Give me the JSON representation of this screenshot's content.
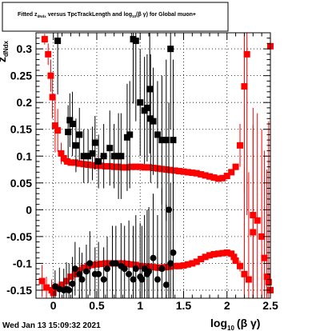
{
  "header": {
    "title_pre": "Fitted  z",
    "title_sub1": "dNdx",
    "title_mid": "  versus TpcTrackLength and log",
    "title_sub2": "10",
    "title_post": "(β γ) for Global muon+"
  },
  "y_axis_title": {
    "main": "z",
    "sub": "dNdx"
  },
  "x_axis_title": {
    "pre": "log",
    "sub": "10",
    "post": "(β γ)"
  },
  "timestamp": "Wed Jan 13 15:09:32 2021",
  "colors": {
    "red_series": "#ff0000",
    "black_series": "#000000"
  },
  "chart_data": {
    "type": "scatter",
    "xlim": [
      -0.2,
      2.5
    ],
    "ylim": [
      -0.165,
      0.33
    ],
    "grid": true,
    "x_tick_labels": [
      "0",
      "0.5",
      "1",
      "1.5",
      "2",
      "2.5"
    ],
    "x_ticks": [
      0,
      0.5,
      1,
      1.5,
      2,
      2.5
    ],
    "y_tick_labels": [
      "-0.15",
      "-0.1",
      "-0.05",
      "0",
      "0.05",
      "0.1",
      "0.15",
      "0.2",
      "0.25",
      "0.3"
    ],
    "y_ticks": [
      -0.15,
      -0.1,
      -0.05,
      0,
      0.05,
      0.1,
      0.15,
      0.2,
      0.25,
      0.3
    ],
    "series": [
      {
        "marker": "square",
        "color": "#ff0000",
        "points": [
          [
            -0.1,
            0.318,
            0.01
          ],
          [
            -0.06,
            0.29,
            0.02
          ],
          [
            -0.03,
            0.25,
            0.03
          ],
          [
            -0.01,
            0.21,
            0.04
          ],
          [
            0.02,
            0.157,
            0.05
          ],
          [
            0.05,
            0.148,
            0.04
          ],
          [
            0.09,
            0.105,
            0.02
          ],
          [
            0.12,
            0.096,
            0.008
          ],
          [
            0.16,
            0.09,
            0.005
          ],
          [
            0.2,
            0.088,
            0.004
          ],
          [
            0.25,
            0.088,
            0.003
          ],
          [
            0.3,
            0.086,
            0.003
          ],
          [
            0.35,
            0.085,
            0.003
          ],
          [
            0.4,
            0.084,
            0.003
          ],
          [
            0.45,
            0.083,
            0.003
          ],
          [
            0.5,
            0.082,
            0.002
          ],
          [
            0.55,
            0.082,
            0.002
          ],
          [
            0.6,
            0.081,
            0.002
          ],
          [
            0.65,
            0.081,
            0.002
          ],
          [
            0.7,
            0.08,
            0.002
          ],
          [
            0.75,
            0.08,
            0.002
          ],
          [
            0.8,
            0.079,
            0.002
          ],
          [
            0.85,
            0.079,
            0.002
          ],
          [
            0.9,
            0.08,
            0.002
          ],
          [
            0.95,
            0.08,
            0.002
          ],
          [
            1.0,
            0.08,
            0.002
          ],
          [
            1.05,
            0.079,
            0.002
          ],
          [
            1.1,
            0.079,
            0.002
          ],
          [
            1.15,
            0.078,
            0.002
          ],
          [
            1.2,
            0.077,
            0.002
          ],
          [
            1.25,
            0.076,
            0.002
          ],
          [
            1.3,
            0.075,
            0.002
          ],
          [
            1.35,
            0.074,
            0.002
          ],
          [
            1.4,
            0.073,
            0.002
          ],
          [
            1.45,
            0.072,
            0.002
          ],
          [
            1.5,
            0.071,
            0.002
          ],
          [
            1.55,
            0.07,
            0.002
          ],
          [
            1.6,
            0.069,
            0.002
          ],
          [
            1.65,
            0.068,
            0.002
          ],
          [
            1.7,
            0.066,
            0.002
          ],
          [
            1.75,
            0.064,
            0.002
          ],
          [
            1.8,
            0.062,
            0.002
          ],
          [
            1.85,
            0.06,
            0.002
          ],
          [
            1.9,
            0.058,
            0.002
          ],
          [
            1.95,
            0.059,
            0.002
          ],
          [
            2.0,
            0.063,
            0.003
          ],
          [
            2.05,
            0.07,
            0.004
          ],
          [
            2.1,
            0.08,
            0.006
          ],
          [
            2.15,
            0.12,
            0.04
          ],
          [
            2.2,
            0.23,
            0.2
          ],
          [
            2.23,
            0.29,
            0.3
          ],
          [
            2.5,
            0.305,
            0.3
          ],
          [
            -0.13,
            -0.133,
            0.03
          ],
          [
            -0.08,
            -0.145,
            0.02
          ],
          [
            -0.02,
            -0.15,
            0.02
          ],
          [
            0.0,
            -0.155,
            0.01
          ],
          [
            0.05,
            -0.145,
            0.008
          ],
          [
            0.1,
            -0.14,
            0.006
          ],
          [
            0.15,
            -0.133,
            0.005
          ],
          [
            0.2,
            -0.125,
            0.004
          ],
          [
            0.25,
            -0.12,
            0.004
          ],
          [
            0.3,
            -0.113,
            0.003
          ],
          [
            0.35,
            -0.108,
            0.003
          ],
          [
            0.4,
            -0.105,
            0.003
          ],
          [
            0.45,
            -0.103,
            0.003
          ],
          [
            0.5,
            -0.102,
            0.003
          ],
          [
            0.55,
            -0.101,
            0.002
          ],
          [
            0.6,
            -0.1,
            0.002
          ],
          [
            0.65,
            -0.1,
            0.002
          ],
          [
            0.7,
            -0.1,
            0.002
          ],
          [
            0.75,
            -0.1,
            0.002
          ],
          [
            0.8,
            -0.1,
            0.002
          ],
          [
            0.85,
            -0.101,
            0.002
          ],
          [
            0.9,
            -0.102,
            0.002
          ],
          [
            0.95,
            -0.103,
            0.002
          ],
          [
            1.0,
            -0.105,
            0.002
          ],
          [
            1.05,
            -0.106,
            0.002
          ],
          [
            1.1,
            -0.106,
            0.002
          ],
          [
            1.15,
            -0.107,
            0.002
          ],
          [
            1.2,
            -0.108,
            0.002
          ],
          [
            1.25,
            -0.108,
            0.002
          ],
          [
            1.3,
            -0.107,
            0.002
          ],
          [
            1.35,
            -0.106,
            0.002
          ],
          [
            1.4,
            -0.105,
            0.002
          ],
          [
            1.45,
            -0.105,
            0.002
          ],
          [
            1.5,
            -0.104,
            0.002
          ],
          [
            1.55,
            -0.102,
            0.002
          ],
          [
            1.6,
            -0.1,
            0.002
          ],
          [
            1.65,
            -0.097,
            0.002
          ],
          [
            1.7,
            -0.092,
            0.002
          ],
          [
            1.75,
            -0.088,
            0.002
          ],
          [
            1.8,
            -0.085,
            0.002
          ],
          [
            1.85,
            -0.083,
            0.002
          ],
          [
            1.9,
            -0.082,
            0.002
          ],
          [
            1.95,
            -0.081,
            0.002
          ],
          [
            2.0,
            -0.08,
            0.003
          ],
          [
            2.05,
            -0.082,
            0.004
          ],
          [
            2.08,
            -0.088,
            0.005
          ],
          [
            2.1,
            -0.095,
            0.006
          ],
          [
            2.15,
            -0.105,
            0.01
          ],
          [
            2.2,
            -0.12,
            0.2
          ],
          [
            2.25,
            -0.13,
            0.2
          ],
          [
            2.3,
            -0.042,
            0.2
          ],
          [
            2.35,
            -0.02,
            0.2
          ],
          [
            2.4,
            -0.05,
            0.2
          ],
          [
            2.43,
            -0.09,
            0.2
          ],
          [
            2.46,
            -0.125,
            0.2
          ],
          [
            2.48,
            -0.135,
            0.3
          ],
          [
            2.5,
            -0.15,
            0.3
          ],
          [
            2.3,
            -0.01,
            0.2
          ]
        ]
      },
      {
        "marker": "square",
        "color": "#000000",
        "points": [
          [
            0.05,
            0.315,
            0.1
          ],
          [
            0.17,
            0.145,
            0.05
          ],
          [
            0.19,
            0.167,
            0.05
          ],
          [
            0.22,
            0.16,
            0.06
          ],
          [
            0.26,
            0.12,
            0.05
          ],
          [
            0.3,
            0.14,
            0.05
          ],
          [
            0.35,
            0.1,
            0.05
          ],
          [
            0.4,
            0.1,
            0.05
          ],
          [
            0.45,
            0.105,
            0.05
          ],
          [
            0.48,
            0.125,
            0.05
          ],
          [
            0.52,
            0.09,
            0.05
          ],
          [
            0.58,
            0.1,
            0.06
          ],
          [
            0.65,
            0.115,
            0.07
          ],
          [
            0.7,
            0.1,
            0.06
          ],
          [
            0.75,
            0.1,
            0.08
          ],
          [
            0.78,
            0.1,
            0.08
          ],
          [
            0.85,
            0.135,
            0.1
          ],
          [
            0.88,
            0.14,
            0.1
          ],
          [
            0.92,
            0.318,
            0.12
          ],
          [
            0.95,
            0.315,
            0.15
          ],
          [
            1.0,
            0.2,
            0.1
          ],
          [
            1.05,
            0.185,
            0.1
          ],
          [
            1.08,
            0.19,
            0.1
          ],
          [
            1.11,
            0.225,
            0.12
          ],
          [
            1.12,
            0.17,
            0.12
          ],
          [
            1.15,
            0.165,
            0.1
          ],
          [
            1.2,
            0.14,
            0.1
          ],
          [
            1.25,
            0.13,
            0.12
          ],
          [
            1.3,
            0.13,
            0.15
          ],
          [
            1.35,
            0.3,
            0.15
          ],
          [
            1.38,
            0.13,
            0.15
          ]
        ]
      },
      {
        "marker": "circle",
        "color": "#000000",
        "points": [
          [
            0.02,
            -0.143,
            0.03
          ],
          [
            0.07,
            -0.148,
            0.04
          ],
          [
            0.12,
            -0.15,
            0.04
          ],
          [
            0.15,
            -0.148,
            0.05
          ],
          [
            0.18,
            -0.15,
            0.05
          ],
          [
            0.22,
            -0.138,
            0.05
          ],
          [
            0.25,
            -0.11,
            0.05
          ],
          [
            0.3,
            -0.12,
            0.05
          ],
          [
            0.33,
            -0.13,
            0.05
          ],
          [
            0.38,
            -0.115,
            0.05
          ],
          [
            0.42,
            -0.1,
            0.06
          ],
          [
            0.48,
            -0.12,
            0.05
          ],
          [
            0.52,
            -0.12,
            0.06
          ],
          [
            0.58,
            -0.13,
            0.06
          ],
          [
            0.62,
            -0.11,
            0.06
          ],
          [
            0.68,
            -0.1,
            0.07
          ],
          [
            0.72,
            -0.1,
            0.07
          ],
          [
            0.78,
            -0.105,
            0.08
          ],
          [
            0.82,
            -0.11,
            0.08
          ],
          [
            0.87,
            -0.12,
            0.1
          ],
          [
            0.92,
            -0.13,
            0.1
          ],
          [
            0.95,
            -0.11,
            0.1
          ],
          [
            1.0,
            -0.125,
            0.1
          ],
          [
            1.02,
            -0.13,
            0.1
          ],
          [
            1.05,
            -0.11,
            0.1
          ],
          [
            1.08,
            -0.12,
            0.12
          ],
          [
            1.1,
            -0.115,
            0.12
          ],
          [
            1.15,
            -0.09,
            0.12
          ],
          [
            1.2,
            -0.13,
            0.12
          ],
          [
            1.25,
            -0.11,
            0.15
          ],
          [
            1.3,
            -0.14,
            0.15
          ],
          [
            1.35,
            -0.1,
            0.15
          ],
          [
            1.38,
            -0.08,
            0.15
          ],
          [
            1.33,
            0.0,
            0.2
          ]
        ]
      }
    ]
  }
}
